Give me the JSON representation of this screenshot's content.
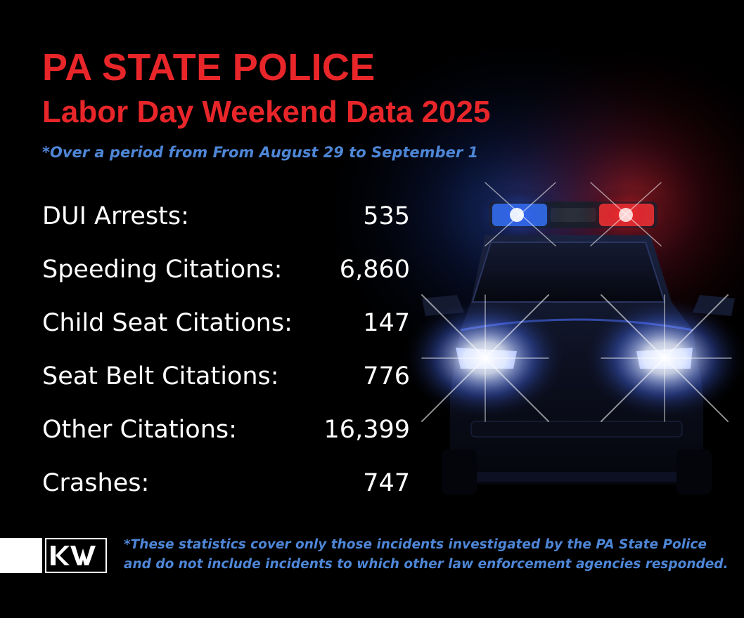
{
  "header": {
    "title": "PA STATE POLICE",
    "subtitle": "Labor Day Weekend Data 2025",
    "period_note": "*Over a period from From August 29 to September 1"
  },
  "stats": [
    {
      "label": "DUI Arrests:",
      "value": "535"
    },
    {
      "label": "Speeding Citations:",
      "value": "6,860"
    },
    {
      "label": "Child Seat Citations:",
      "value": "147"
    },
    {
      "label": "Seat Belt Citations:",
      "value": "776"
    },
    {
      "label": "Other Citations:",
      "value": "16,399"
    },
    {
      "label": "Crashes:",
      "value": "747"
    }
  ],
  "logo": {
    "text": "KW",
    "icon": "kw-logo"
  },
  "footnote": {
    "line1": "*These statistics cover only those incidents investigated by the PA State Police",
    "line2": "and do not include incidents to which other law enforcement agencies responded."
  },
  "colors": {
    "background": "#000000",
    "title_red": "#e8262a",
    "note_blue": "#4e86d6",
    "text_white": "#ffffff",
    "siren_blue": "#2f6bff",
    "siren_red": "#ff2a2a"
  }
}
